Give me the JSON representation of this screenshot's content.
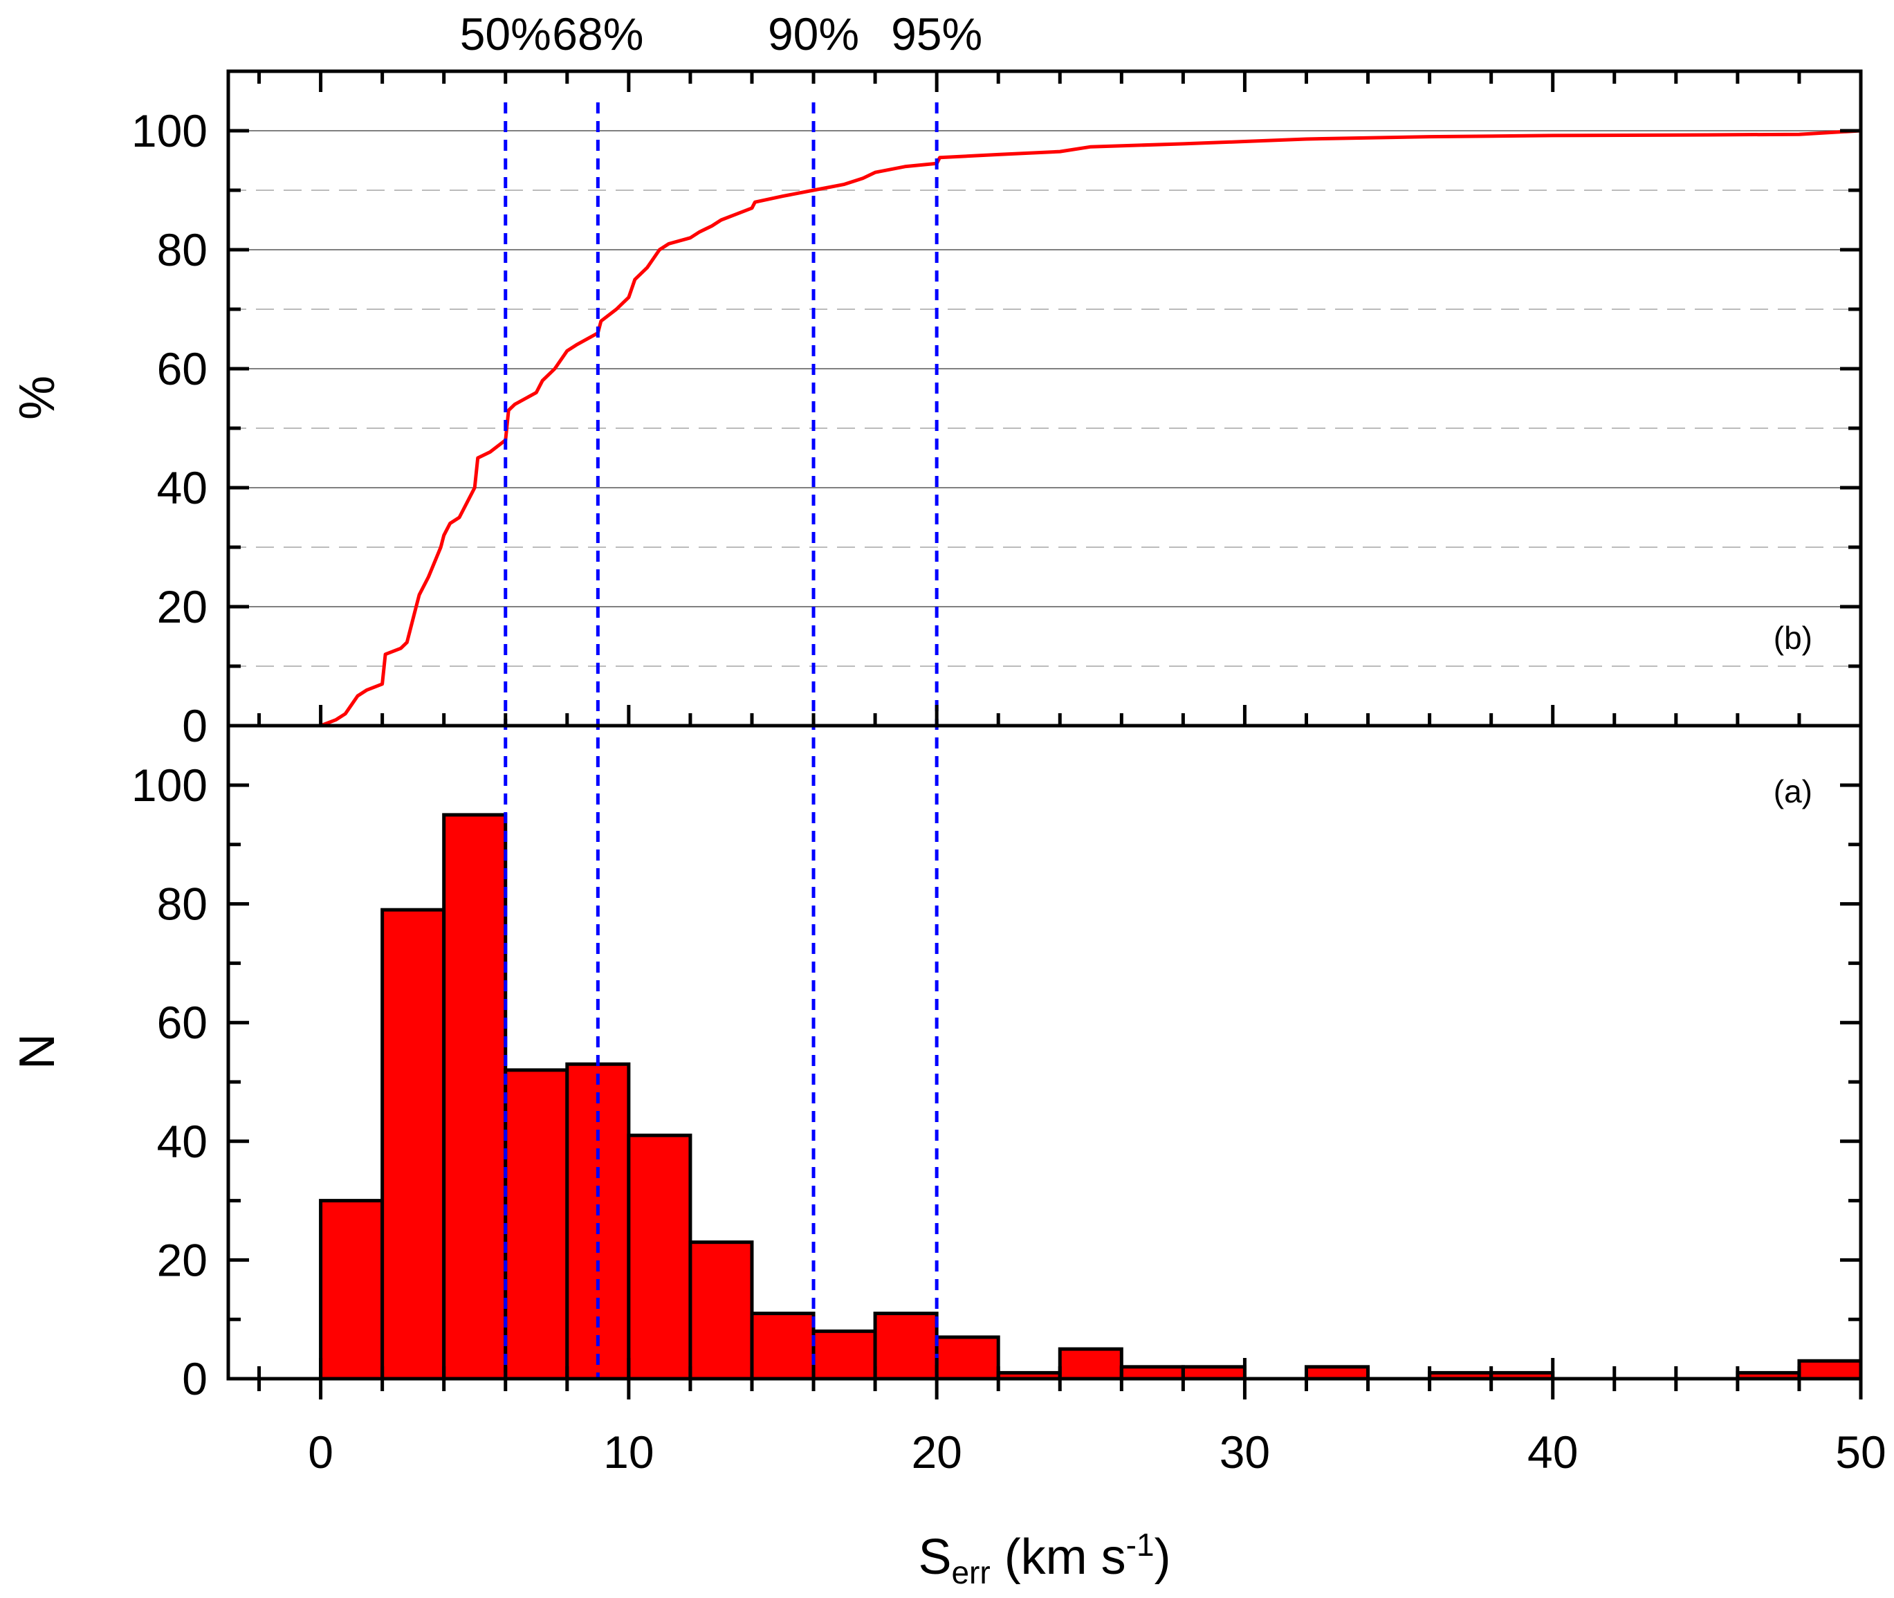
{
  "chart_data": [
    {
      "panel": "(b)",
      "type": "line",
      "ylabel": "%",
      "xlim": [
        -3,
        50
      ],
      "ylim": [
        0,
        110
      ],
      "yticks": [
        0,
        20,
        40,
        60,
        80,
        100
      ],
      "grid": "horizontal (solid at major, dashed at minor)",
      "series_color": "#ff0000",
      "series": [
        {
          "x": [
            0,
            0.5,
            0.8,
            1.2,
            1.5,
            2.0,
            2.1,
            2.6,
            2.8,
            3.1,
            3.2,
            3.5,
            3.9,
            4.0,
            4.2,
            4.5,
            5.0,
            5.1,
            5.5,
            6.0,
            6.1,
            6.3,
            7.0,
            7.2,
            7.6,
            8.0,
            8.3,
            9.0,
            9.1,
            9.6,
            10.0,
            10.2,
            10.6,
            11.0,
            11.3,
            12.0,
            12.3,
            12.7,
            13.0,
            13.5,
            14.0,
            14.1,
            15.0,
            16.0,
            17.0,
            17.6,
            18.0,
            19.0,
            20.0,
            20.1,
            22.0,
            24.0,
            25.0,
            28.0,
            30.0,
            32.0,
            36.0,
            40.0,
            45.0,
            48.0,
            50.0
          ],
          "y": [
            0,
            1,
            2,
            5,
            6,
            7,
            12,
            13,
            14,
            20,
            22,
            25,
            30,
            32,
            34,
            35,
            40,
            45,
            46,
            48,
            53,
            54,
            56,
            58,
            60,
            63,
            64,
            66,
            68,
            70,
            72,
            75,
            77,
            80,
            81,
            82,
            83,
            84,
            85,
            86,
            87,
            88,
            89,
            90,
            91,
            92,
            93,
            94,
            94.5,
            95.5,
            96,
            96.5,
            97.3,
            97.8,
            98.2,
            98.6,
            99,
            99.2,
            99.3,
            99.4,
            100
          ]
        }
      ],
      "reference_lines": [
        {
          "x": 6,
          "label": "50%"
        },
        {
          "x": 9,
          "label": "68%"
        },
        {
          "x": 16,
          "label": "90%"
        },
        {
          "x": 20,
          "label": "95%"
        }
      ],
      "reference_line_color": "#0000ff"
    },
    {
      "panel": "(a)",
      "type": "bar",
      "xlabel": "Serr (km s-1)",
      "xlabel_parts": {
        "main": "S",
        "sub": "err",
        "mid": " (km s",
        "sup": "-1",
        "end": ")"
      },
      "ylabel": "N",
      "xlim": [
        -3,
        50
      ],
      "ylim": [
        0,
        100
      ],
      "xticks": [
        0,
        10,
        20,
        30,
        40,
        50
      ],
      "yticks": [
        0,
        20,
        40,
        60,
        80,
        100
      ],
      "bin_width": 2,
      "bar_color": "#ff0000",
      "bins": [
        {
          "x0": 0,
          "value": 30
        },
        {
          "x0": 2,
          "value": 79
        },
        {
          "x0": 4,
          "value": 95
        },
        {
          "x0": 6,
          "value": 52
        },
        {
          "x0": 8,
          "value": 53
        },
        {
          "x0": 10,
          "value": 41
        },
        {
          "x0": 12,
          "value": 23
        },
        {
          "x0": 14,
          "value": 11
        },
        {
          "x0": 16,
          "value": 8
        },
        {
          "x0": 18,
          "value": 11
        },
        {
          "x0": 20,
          "value": 7
        },
        {
          "x0": 22,
          "value": 1
        },
        {
          "x0": 24,
          "value": 5
        },
        {
          "x0": 26,
          "value": 2
        },
        {
          "x0": 28,
          "value": 2
        },
        {
          "x0": 30,
          "value": 0
        },
        {
          "x0": 32,
          "value": 2
        },
        {
          "x0": 34,
          "value": 0
        },
        {
          "x0": 36,
          "value": 1
        },
        {
          "x0": 38,
          "value": 1
        },
        {
          "x0": 40,
          "value": 0
        },
        {
          "x0": 42,
          "value": 0
        },
        {
          "x0": 44,
          "value": 0
        },
        {
          "x0": 46,
          "value": 1
        },
        {
          "x0": 48,
          "value": 3
        }
      ]
    }
  ]
}
